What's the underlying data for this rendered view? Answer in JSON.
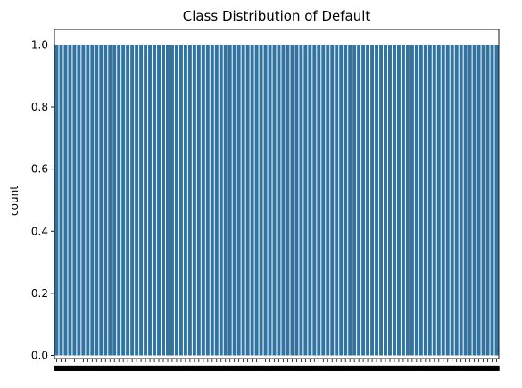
{
  "chart_data": {
    "type": "bar",
    "title": "Class Distribution of Default",
    "xlabel": "",
    "ylabel": "count",
    "ylim": [
      -0.01,
      1.05
    ],
    "yticks": [
      "0.0",
      "0.2",
      "0.4",
      "0.6",
      "0.8",
      "1.0"
    ],
    "grid": false,
    "legend": "none",
    "bar_color": "#3274a1",
    "bar_count": 100,
    "values": [
      1.0,
      1.0,
      1.0,
      1.0,
      1.0,
      1.0,
      1.0,
      1.0,
      1.0,
      1.0,
      1.0,
      1.0,
      1.0,
      1.0,
      1.0,
      1.0,
      1.0,
      1.0,
      1.0,
      1.0,
      1.0,
      1.0,
      1.0,
      1.0,
      1.0,
      1.0,
      1.0,
      1.0,
      1.0,
      1.0,
      1.0,
      1.0,
      1.0,
      1.0,
      1.0,
      1.0,
      1.0,
      1.0,
      1.0,
      1.0,
      1.0,
      1.0,
      1.0,
      1.0,
      1.0,
      1.0,
      1.0,
      1.0,
      1.0,
      1.0,
      1.0,
      1.0,
      1.0,
      1.0,
      1.0,
      1.0,
      1.0,
      1.0,
      1.0,
      1.0,
      1.0,
      1.0,
      1.0,
      1.0,
      1.0,
      1.0,
      1.0,
      1.0,
      1.0,
      1.0,
      1.0,
      1.0,
      1.0,
      1.0,
      1.0,
      1.0,
      1.0,
      1.0,
      1.0,
      1.0,
      1.0,
      1.0,
      1.0,
      1.0,
      1.0,
      1.0,
      1.0,
      1.0,
      1.0,
      1.0,
      1.0,
      1.0,
      1.0,
      1.0,
      1.0,
      1.0,
      1.0,
      1.0,
      1.0,
      1.0
    ]
  }
}
